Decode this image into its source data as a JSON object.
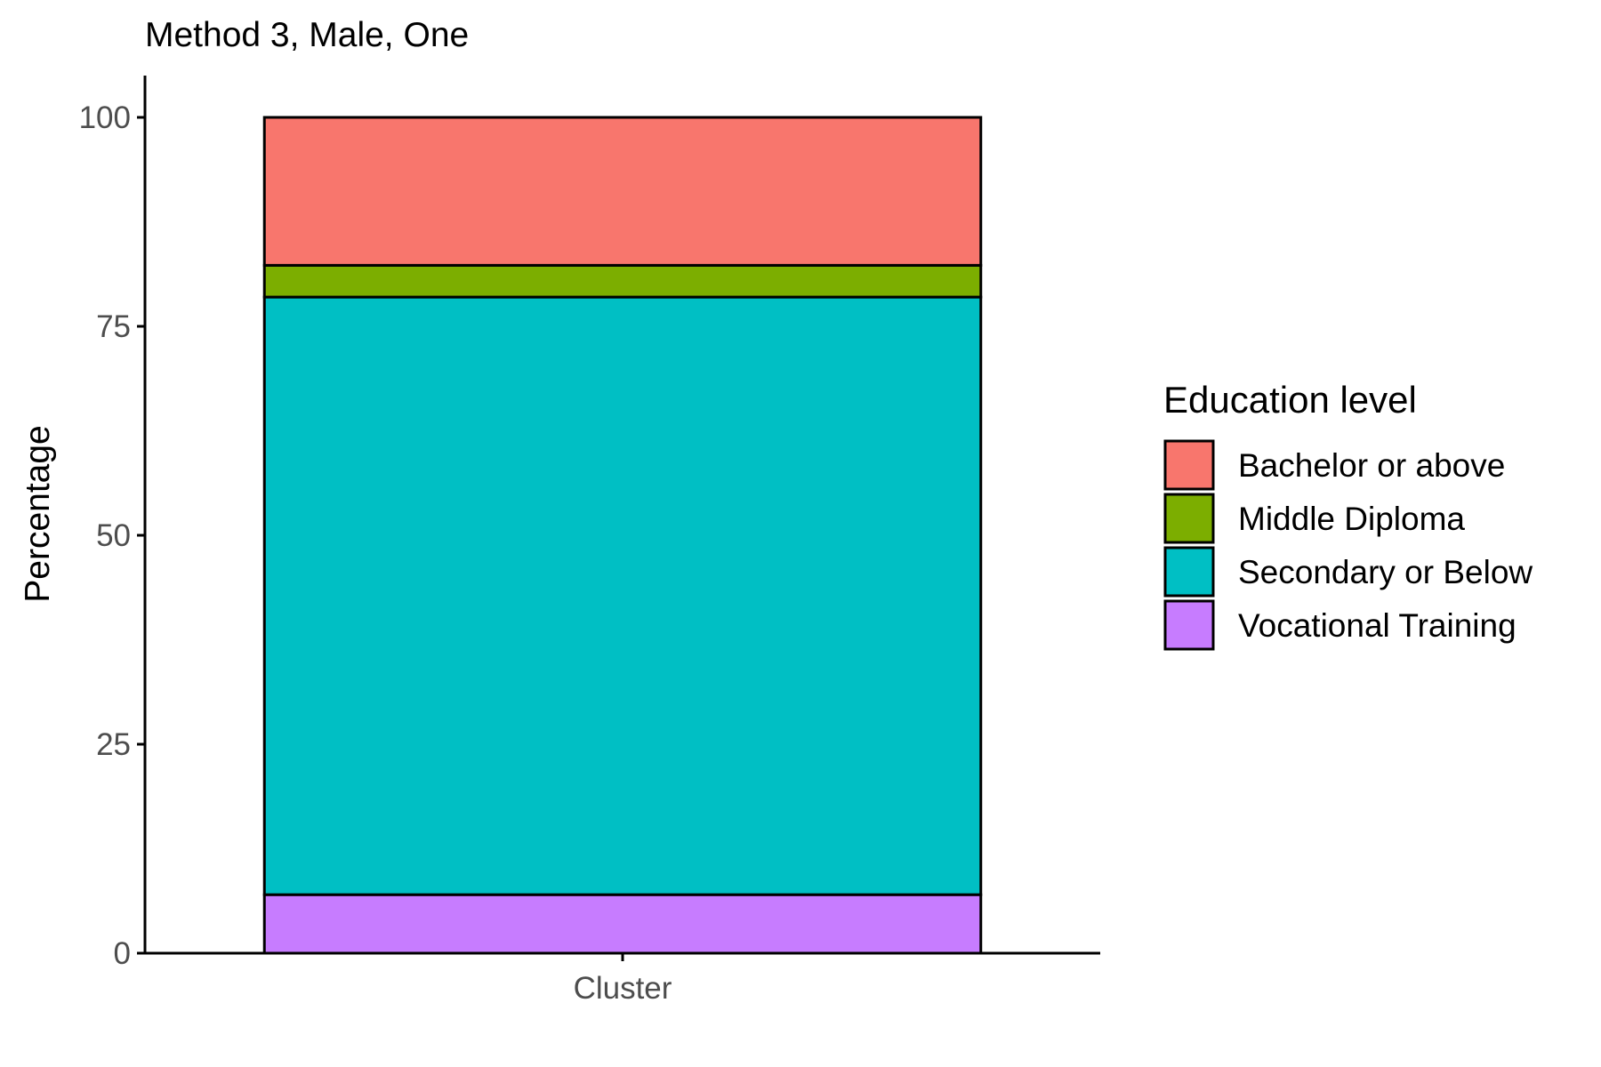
{
  "chart_data": {
    "type": "bar",
    "stacked": true,
    "title": "Method 3, Male, One",
    "xlabel": "",
    "ylabel": "Percentage",
    "categories": [
      "Cluster"
    ],
    "ylim": [
      0,
      105
    ],
    "yticks": [
      0,
      25,
      50,
      75,
      100
    ],
    "grid": false,
    "legend": {
      "title": "Education level",
      "placement": "right",
      "entries": [
        "Bachelor or above",
        "Middle Diploma",
        "Secondary or Below",
        "Vocational Training"
      ]
    },
    "series": [
      {
        "name": "Vocational Training",
        "values": [
          7
        ],
        "color": "#C77CFF"
      },
      {
        "name": "Secondary or Below",
        "values": [
          71.5
        ],
        "color": "#00BFC4"
      },
      {
        "name": "Middle Diploma",
        "values": [
          3.8
        ],
        "color": "#7CAE00"
      },
      {
        "name": "Bachelor or above",
        "values": [
          17.7
        ],
        "color": "#F8766D"
      }
    ]
  }
}
